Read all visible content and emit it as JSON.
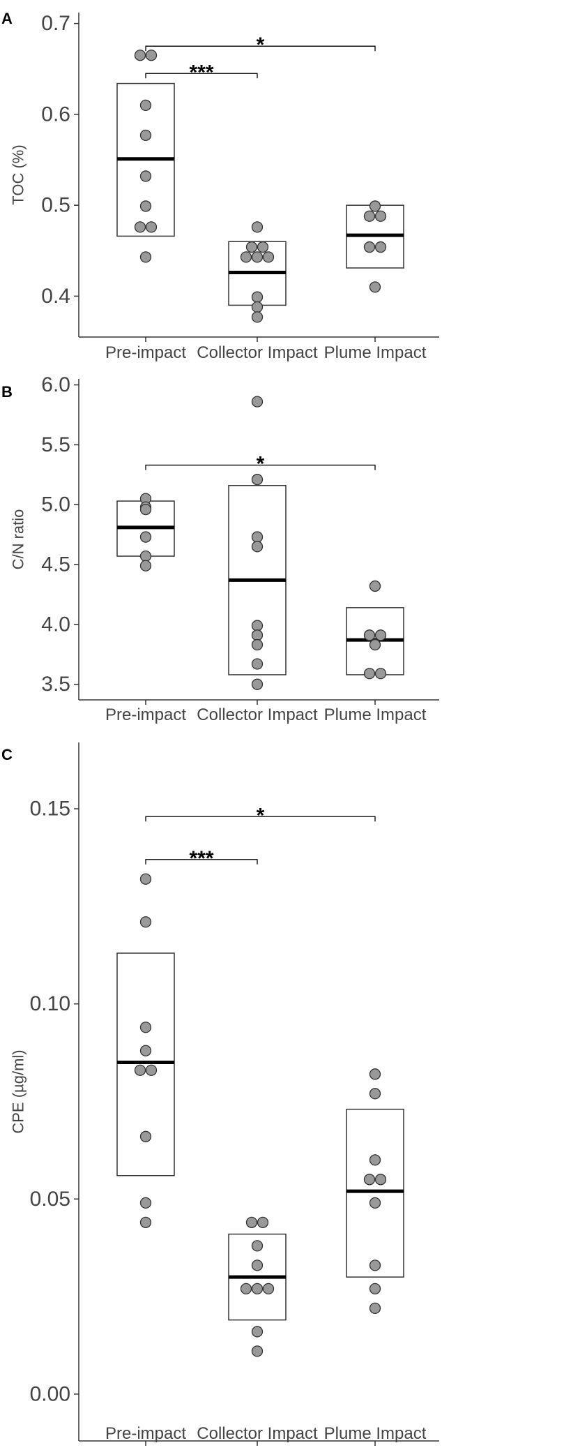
{
  "chart_data": [
    {
      "type": "box",
      "panel_label": "A",
      "categories": [
        "Pre-impact",
        "Collector Impact",
        "Plume Impact"
      ],
      "ylabel": "TOC (%)",
      "ylim": [
        0.355,
        0.712
      ],
      "yticks": [
        0.4,
        0.5,
        0.6,
        0.7
      ],
      "ytick_labels": [
        "0.4",
        "0.5",
        "0.6",
        "0.7"
      ],
      "boxes": [
        {
          "q1": 0.466,
          "median": 0.551,
          "q3": 0.634
        },
        {
          "q1": 0.39,
          "median": 0.426,
          "q3": 0.46
        },
        {
          "q1": 0.431,
          "median": 0.467,
          "q3": 0.5
        }
      ],
      "points": [
        [
          {
            "x": 0,
            "y": 0.665
          },
          {
            "x": 0,
            "y": 0.665
          },
          {
            "x": 0,
            "y": 0.61
          },
          {
            "x": 0,
            "y": 0.577
          },
          {
            "x": 0,
            "y": 0.532
          },
          {
            "x": 0,
            "y": 0.499
          },
          {
            "x": 0,
            "y": 0.476
          },
          {
            "x": 0,
            "y": 0.476
          },
          {
            "x": 0,
            "y": 0.443
          }
        ],
        [
          {
            "x": 0,
            "y": 0.476
          },
          {
            "x": 0,
            "y": 0.454
          },
          {
            "x": 0,
            "y": 0.454
          },
          {
            "x": 0,
            "y": 0.443
          },
          {
            "x": 0,
            "y": 0.443
          },
          {
            "x": 0,
            "y": 0.443
          },
          {
            "x": 0,
            "y": 0.399
          },
          {
            "x": 0,
            "y": 0.388
          },
          {
            "x": 0,
            "y": 0.377
          }
        ],
        [
          {
            "x": 0,
            "y": 0.499
          },
          {
            "x": 0,
            "y": 0.488
          },
          {
            "x": 0,
            "y": 0.488
          },
          {
            "x": 0,
            "y": 0.454
          },
          {
            "x": 0,
            "y": 0.454
          },
          {
            "x": 0,
            "y": 0.41
          }
        ]
      ],
      "significance": [
        {
          "from": 0,
          "to": 1,
          "y": 0.645,
          "label": "***"
        },
        {
          "from": 0,
          "to": 2,
          "y": 0.675,
          "label": "*"
        }
      ]
    },
    {
      "type": "box",
      "panel_label": "B",
      "categories": [
        "Pre-impact",
        "Collector Impact",
        "Plume Impact"
      ],
      "ylabel": "C/N ratio",
      "ylim": [
        3.37,
        6.05
      ],
      "yticks": [
        3.5,
        4.0,
        4.5,
        5.0,
        5.5,
        6.0
      ],
      "ytick_labels": [
        "3.5",
        "4.0",
        "4.5",
        "5.0",
        "5.5",
        "6.0"
      ],
      "boxes": [
        {
          "q1": 4.57,
          "median": 4.81,
          "q3": 5.03
        },
        {
          "q1": 3.58,
          "median": 4.37,
          "q3": 5.16
        },
        {
          "q1": 3.58,
          "median": 3.87,
          "q3": 4.14
        }
      ],
      "points": [
        [
          {
            "x": 0,
            "y": 5.05
          },
          {
            "x": 0,
            "y": 4.98
          },
          {
            "x": 0,
            "y": 4.96
          },
          {
            "x": 0,
            "y": 4.73
          },
          {
            "x": 0,
            "y": 4.57
          },
          {
            "x": 0,
            "y": 4.49
          }
        ],
        [
          {
            "x": 0,
            "y": 5.86
          },
          {
            "x": 0,
            "y": 5.21
          },
          {
            "x": 0,
            "y": 4.73
          },
          {
            "x": 0,
            "y": 4.65
          },
          {
            "x": 0,
            "y": 3.99
          },
          {
            "x": 0,
            "y": 3.91
          },
          {
            "x": 0,
            "y": 3.83
          },
          {
            "x": 0,
            "y": 3.67
          },
          {
            "x": 0,
            "y": 3.5
          }
        ],
        [
          {
            "x": 0,
            "y": 4.32
          },
          {
            "x": 0,
            "y": 3.91
          },
          {
            "x": 0,
            "y": 3.91
          },
          {
            "x": 0,
            "y": 3.83
          },
          {
            "x": 0,
            "y": 3.59
          },
          {
            "x": 0,
            "y": 3.59
          }
        ]
      ],
      "significance": [
        {
          "from": 0,
          "to": 2,
          "y": 5.33,
          "label": "*"
        }
      ]
    },
    {
      "type": "box",
      "panel_label": "C",
      "categories": [
        "Pre-impact",
        "Collector Impact",
        "Plume Impact"
      ],
      "ylabel": "CPE (µg/ml)",
      "ylim": [
        -0.012,
        0.167
      ],
      "yticks": [
        0.0,
        0.05,
        0.1,
        0.15
      ],
      "ytick_labels": [
        "0.00",
        "0.05",
        "0.10",
        "0.15"
      ],
      "boxes": [
        {
          "q1": 0.056,
          "median": 0.085,
          "q3": 0.113
        },
        {
          "q1": 0.019,
          "median": 0.03,
          "q3": 0.041
        },
        {
          "q1": 0.03,
          "median": 0.052,
          "q3": 0.073
        }
      ],
      "points": [
        [
          {
            "x": 0,
            "y": 0.132
          },
          {
            "x": 0,
            "y": 0.121
          },
          {
            "x": 0,
            "y": 0.094
          },
          {
            "x": 0,
            "y": 0.088
          },
          {
            "x": 0,
            "y": 0.083
          },
          {
            "x": 0,
            "y": 0.083
          },
          {
            "x": 0,
            "y": 0.066
          },
          {
            "x": 0,
            "y": 0.049
          },
          {
            "x": 0,
            "y": 0.044
          }
        ],
        [
          {
            "x": 0,
            "y": 0.044
          },
          {
            "x": 0,
            "y": 0.044
          },
          {
            "x": 0,
            "y": 0.038
          },
          {
            "x": 0,
            "y": 0.033
          },
          {
            "x": 0,
            "y": 0.027
          },
          {
            "x": 0,
            "y": 0.027
          },
          {
            "x": 0,
            "y": 0.027
          },
          {
            "x": 0,
            "y": 0.016
          },
          {
            "x": 0,
            "y": 0.011
          }
        ],
        [
          {
            "x": 0,
            "y": 0.082
          },
          {
            "x": 0,
            "y": 0.077
          },
          {
            "x": 0,
            "y": 0.06
          },
          {
            "x": 0,
            "y": 0.055
          },
          {
            "x": 0,
            "y": 0.055
          },
          {
            "x": 0,
            "y": 0.049
          },
          {
            "x": 0,
            "y": 0.033
          },
          {
            "x": 0,
            "y": 0.027
          },
          {
            "x": 0,
            "y": 0.022
          }
        ]
      ],
      "significance": [
        {
          "from": 0,
          "to": 1,
          "y": 0.137,
          "label": "***"
        },
        {
          "from": 0,
          "to": 2,
          "y": 0.148,
          "label": "*"
        }
      ]
    }
  ],
  "colors": {
    "point_fill": "#999999",
    "point_stroke": "#333333",
    "box_stroke": "#333333",
    "median": "#000000",
    "axis": "#333333",
    "text": "#444444"
  }
}
